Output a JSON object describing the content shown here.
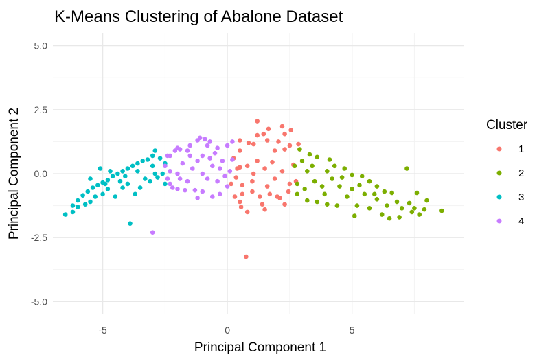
{
  "chart_data": {
    "type": "scatter",
    "title": "K-Means Clustering of Abalone Dataset",
    "xlabel": "Principal Component 1",
    "ylabel": "Principal Component 2",
    "xlim": [
      -7,
      9.5
    ],
    "ylim": [
      -5.5,
      5.5
    ],
    "x_ticks": [
      -5,
      0,
      5
    ],
    "x_tick_labels": [
      "-5",
      "0",
      "5"
    ],
    "y_ticks": [
      -5,
      -2.5,
      0,
      2.5,
      5
    ],
    "y_tick_labels": [
      "-5.0",
      "-2.5",
      "0.0",
      "2.5",
      "5.0"
    ],
    "grid": true,
    "legend_title": "Cluster",
    "legend_position": "right",
    "series": [
      {
        "name": "1",
        "color": "#F8766D",
        "points": [
          [
            1.2,
            2.05
          ],
          [
            1.6,
            1.3
          ],
          [
            1.05,
            1.15
          ],
          [
            1.2,
            1.5
          ],
          [
            1.65,
            1.75
          ],
          [
            1.45,
            1.55
          ],
          [
            2.2,
            1.85
          ],
          [
            2.55,
            1.7
          ],
          [
            2.3,
            1.55
          ],
          [
            2.85,
            1.15
          ],
          [
            2.5,
            1.1
          ],
          [
            0.5,
            1.3
          ],
          [
            0.85,
            1.2
          ],
          [
            2.05,
            1.25
          ],
          [
            0.25,
            0.6
          ],
          [
            0.5,
            0.25
          ],
          [
            0.35,
            -0.15
          ],
          [
            0.6,
            -0.45
          ],
          [
            1.0,
            -0.7
          ],
          [
            1.3,
            -0.9
          ],
          [
            1.7,
            -0.8
          ],
          [
            2.1,
            -0.95
          ],
          [
            2.45,
            -0.7
          ],
          [
            2.75,
            -0.3
          ],
          [
            2.65,
            0.35
          ],
          [
            0.15,
            -0.4
          ],
          [
            0.3,
            -0.9
          ],
          [
            0.55,
            -1.3
          ],
          [
            0.6,
            -0.8
          ],
          [
            2.0,
            -0.9
          ],
          [
            2.3,
            -1.2
          ],
          [
            1.5,
            -1.4
          ],
          [
            0.8,
            -1.5
          ],
          [
            0.5,
            -1.1
          ],
          [
            0.75,
            -3.25
          ],
          [
            0.5,
            0.9
          ],
          [
            1.9,
            0.9
          ],
          [
            2.3,
            0.95
          ],
          [
            1.4,
            -1.2
          ],
          [
            1.05,
            0.0
          ],
          [
            1.5,
            0.2
          ],
          [
            1.9,
            -0.2
          ],
          [
            2.2,
            0.1
          ],
          [
            1.2,
            0.5
          ],
          [
            1.8,
            0.45
          ],
          [
            0.8,
            0.3
          ],
          [
            1.0,
            -0.3
          ],
          [
            2.5,
            -0.4
          ],
          [
            0.4,
            0.2
          ],
          [
            1.6,
            -0.5
          ]
        ]
      },
      {
        "name": "2",
        "color": "#7CAE00",
        "points": [
          [
            2.9,
            0.95
          ],
          [
            3.3,
            0.75
          ],
          [
            3.6,
            0.65
          ],
          [
            4.1,
            0.55
          ],
          [
            4.3,
            0.3
          ],
          [
            4.7,
            0.2
          ],
          [
            5.0,
            -0.05
          ],
          [
            5.4,
            -0.1
          ],
          [
            5.7,
            -0.3
          ],
          [
            6.0,
            -0.5
          ],
          [
            6.3,
            -0.7
          ],
          [
            6.6,
            -0.75
          ],
          [
            7.2,
            0.2
          ],
          [
            7.6,
            -0.75
          ],
          [
            8.0,
            -1.05
          ],
          [
            7.9,
            -1.4
          ],
          [
            7.5,
            -1.35
          ],
          [
            7.3,
            -1.15
          ],
          [
            7.0,
            -1.35
          ],
          [
            6.9,
            -1.7
          ],
          [
            6.5,
            -1.75
          ],
          [
            6.2,
            -1.6
          ],
          [
            5.7,
            -1.35
          ],
          [
            5.2,
            -1.25
          ],
          [
            5.1,
            -1.65
          ],
          [
            4.4,
            -1.25
          ],
          [
            4.0,
            -1.2
          ],
          [
            3.6,
            -1.1
          ],
          [
            3.2,
            -1.05
          ],
          [
            2.8,
            -0.8
          ],
          [
            2.7,
            0.3
          ],
          [
            7.4,
            -1.5
          ],
          [
            3.0,
            0.5
          ],
          [
            3.5,
            -0.3
          ],
          [
            4.0,
            0.1
          ],
          [
            4.5,
            -0.5
          ],
          [
            5.0,
            -0.6
          ],
          [
            5.5,
            -0.8
          ],
          [
            6.0,
            -1.0
          ],
          [
            3.2,
            0.1
          ],
          [
            3.8,
            -0.5
          ],
          [
            4.2,
            -0.2
          ],
          [
            4.8,
            -0.9
          ],
          [
            5.3,
            -0.45
          ],
          [
            6.4,
            -1.25
          ],
          [
            6.8,
            -1.1
          ],
          [
            7.7,
            -1.6
          ],
          [
            8.6,
            -1.45
          ],
          [
            3.4,
            0.3
          ],
          [
            4.6,
            -0.15
          ],
          [
            2.8,
            -0.4
          ],
          [
            3.1,
            -0.6
          ],
          [
            3.9,
            -0.8
          ],
          [
            5.9,
            -0.8
          ]
        ]
      },
      {
        "name": "3",
        "color": "#00BFC4",
        "points": [
          [
            -6.5,
            -1.6
          ],
          [
            -6.2,
            -1.25
          ],
          [
            -6.0,
            -1.05
          ],
          [
            -5.8,
            -0.85
          ],
          [
            -5.6,
            -0.7
          ],
          [
            -5.4,
            -0.55
          ],
          [
            -5.2,
            -0.45
          ],
          [
            -5.0,
            -0.35
          ],
          [
            -4.8,
            -0.25
          ],
          [
            -4.6,
            -0.1
          ],
          [
            -4.4,
            0.0
          ],
          [
            -4.2,
            0.1
          ],
          [
            -4.0,
            0.2
          ],
          [
            -3.8,
            0.3
          ],
          [
            -3.6,
            0.4
          ],
          [
            -3.4,
            0.5
          ],
          [
            -3.2,
            0.55
          ],
          [
            -3.0,
            0.7
          ],
          [
            -2.9,
            0.9
          ],
          [
            -2.7,
            0.6
          ],
          [
            -2.5,
            0.4
          ],
          [
            -5.1,
            0.2
          ],
          [
            -5.0,
            -0.8
          ],
          [
            -4.5,
            -0.9
          ],
          [
            -4.2,
            -0.55
          ],
          [
            -3.5,
            -0.55
          ],
          [
            -4.0,
            -0.4
          ],
          [
            -3.3,
            -0.2
          ],
          [
            -2.8,
            -0.15
          ],
          [
            -3.9,
            -1.95
          ],
          [
            -3.7,
            -0.8
          ],
          [
            -5.7,
            -1.2
          ],
          [
            -6.0,
            -1.3
          ],
          [
            -5.5,
            -0.2
          ],
          [
            -4.7,
            0.1
          ],
          [
            -3.0,
            0.3
          ],
          [
            -2.6,
            0.0
          ],
          [
            -2.5,
            -0.4
          ],
          [
            -4.3,
            -0.3
          ],
          [
            -4.8,
            -0.6
          ],
          [
            -5.3,
            -0.9
          ],
          [
            -3.6,
            0.1
          ],
          [
            -3.1,
            -0.3
          ],
          [
            -2.9,
            0.0
          ],
          [
            -4.1,
            -0.1
          ],
          [
            -5.5,
            -1.1
          ],
          [
            -6.2,
            -1.5
          ],
          [
            -4.9,
            -0.4
          ]
        ]
      },
      {
        "name": "4",
        "color": "#C77CFF",
        "points": [
          [
            -3.0,
            -2.3
          ],
          [
            -2.5,
            0.3
          ],
          [
            -2.3,
            0.7
          ],
          [
            -2.1,
            0.9
          ],
          [
            -1.9,
            0.95
          ],
          [
            -1.6,
            0.9
          ],
          [
            -1.2,
            1.3
          ],
          [
            -1.1,
            1.4
          ],
          [
            -0.9,
            1.35
          ],
          [
            -0.7,
            1.25
          ],
          [
            -0.4,
            1.0
          ],
          [
            0.0,
            1.1
          ],
          [
            0.2,
            1.25
          ],
          [
            -0.5,
            0.8
          ],
          [
            -1.0,
            0.7
          ],
          [
            -1.5,
            0.7
          ],
          [
            -2.3,
            0.1
          ],
          [
            -2.4,
            -0.2
          ],
          [
            -2.3,
            -0.4
          ],
          [
            -2.2,
            -0.55
          ],
          [
            -2.0,
            -0.6
          ],
          [
            -1.7,
            -0.65
          ],
          [
            -1.3,
            -0.65
          ],
          [
            -1.2,
            -0.95
          ],
          [
            -1.0,
            -0.7
          ],
          [
            -0.6,
            -0.9
          ],
          [
            -0.3,
            -0.8
          ],
          [
            0.0,
            -0.5
          ],
          [
            0.1,
            0.1
          ],
          [
            0.2,
            0.55
          ],
          [
            -2.4,
            0.7
          ],
          [
            -1.8,
            0.4
          ],
          [
            -1.4,
            0.2
          ],
          [
            -1.0,
            0.0
          ],
          [
            -0.6,
            0.3
          ],
          [
            -0.2,
            0.5
          ],
          [
            -0.4,
            -0.3
          ],
          [
            -0.8,
            -0.2
          ],
          [
            -1.6,
            -0.3
          ],
          [
            -2.0,
            0.0
          ],
          [
            -1.2,
            0.5
          ],
          [
            -0.7,
            0.6
          ],
          [
            -0.1,
            -0.1
          ],
          [
            -1.9,
            -0.2
          ],
          [
            -1.5,
            1.1
          ],
          [
            -0.8,
            1.1
          ],
          [
            -2.0,
            1.0
          ],
          [
            -0.3,
            0.2
          ]
        ]
      }
    ]
  }
}
